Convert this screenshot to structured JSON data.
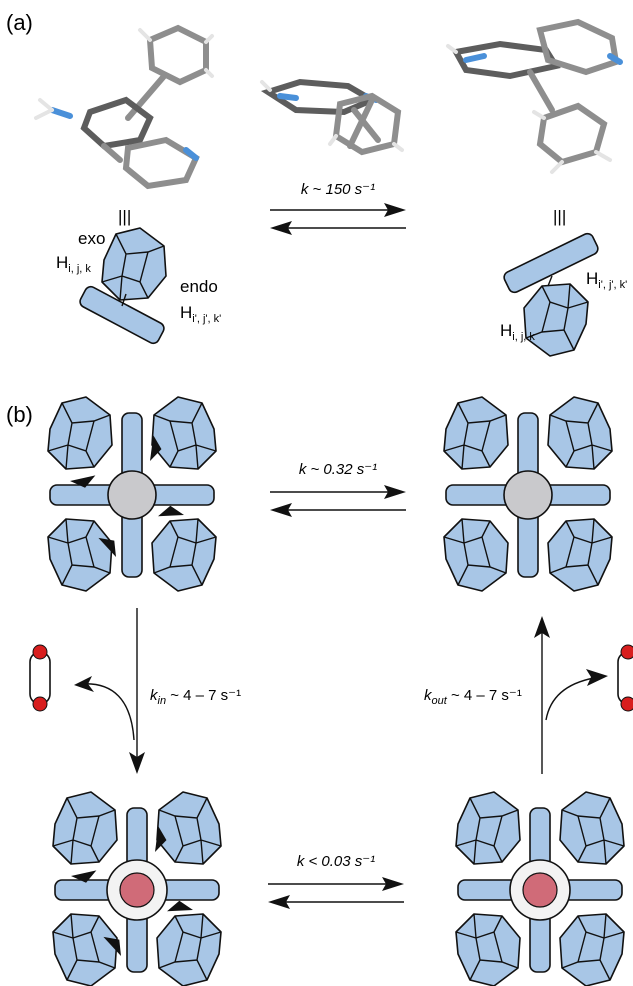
{
  "panel_a": {
    "label": "(a)",
    "rate_label": "k ~ 150 s⁻¹",
    "left_equiv": "|||",
    "right_equiv": "|||",
    "exo_label": "exo",
    "endo_label": "endo",
    "h_left_exo": "H",
    "h_left_exo_sub": "i, j, k",
    "h_left_endo": "H",
    "h_left_endo_sub": "i', j', k'",
    "h_right_top": "H",
    "h_right_top_sub": "i', j', k'",
    "h_right_bottom": "H",
    "h_right_bottom_sub": "i, j, k"
  },
  "panel_b": {
    "label": "(b)",
    "rate_top": "k ~ 0.32 s⁻¹",
    "rate_bottom": "k < 0.03 s⁻¹",
    "rate_in_k": "k",
    "rate_in_sub": "in",
    "rate_in_value": " ~ 4 – 7 s⁻¹",
    "rate_out_k": "k",
    "rate_out_sub": "out",
    "rate_out_value": " ~ 4 – 7 s⁻¹"
  },
  "colors": {
    "ligand_blue": "#a8c6e6",
    "metal_grey": "#c9c9cc",
    "guest_red": "#d06b78",
    "guest_endcap_red": "#d81e1e",
    "nitrogen_blue": "#4a90d9"
  }
}
